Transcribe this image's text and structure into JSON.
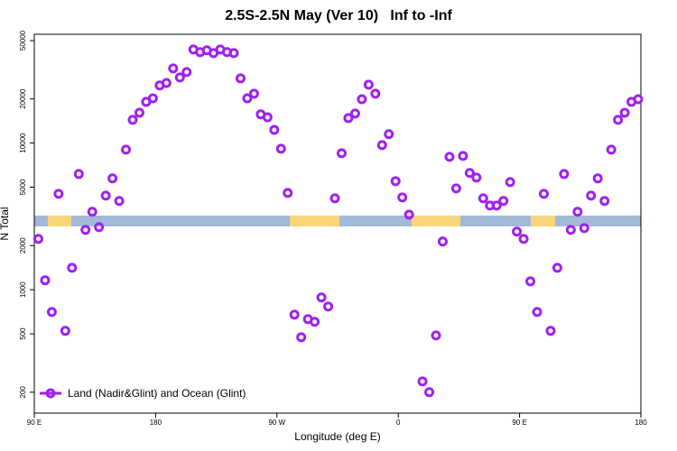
{
  "chart_data": {
    "type": "scatter",
    "title": "2.5S-2.5N May (Ver 10)   Inf to -Inf",
    "x_label": "Longitude (deg E)",
    "y_label": "N Total",
    "y_log": true,
    "legend_position": "bottom-left",
    "xlim": [
      90,
      540
    ],
    "xticks": [
      {
        "value": 90,
        "label": "90 E"
      },
      180,
      {
        "value": 270,
        "label": "90 W"
      },
      {
        "value": 360,
        "label": "0"
      },
      {
        "value": 450,
        "label": "90 E"
      },
      {
        "value": 540,
        "label": "180"
      }
    ],
    "ylim": [
      144,
      55200
    ],
    "yticks": [
      200,
      500,
      1000,
      2000,
      5000,
      10000,
      20000,
      50000
    ],
    "series": [
      {
        "name": "Land (Nadir&Glint) and Ocean (Glint)",
        "color": "#a020f0",
        "x": [
          93,
          98,
          103,
          108,
          113,
          118,
          123,
          128,
          133,
          138,
          143,
          148,
          153,
          158,
          163,
          168,
          173,
          178,
          183,
          188,
          193,
          198,
          203,
          208,
          213,
          218,
          223,
          228,
          233,
          238,
          243,
          248,
          253,
          258,
          263,
          268,
          273,
          278,
          283,
          288,
          293,
          298,
          303,
          308,
          313,
          318,
          323,
          328,
          333,
          338,
          343,
          348,
          353,
          358,
          363,
          368,
          378,
          383,
          388,
          393,
          398,
          403,
          408,
          413,
          418,
          423,
          428,
          433,
          438,
          443,
          448,
          453,
          458,
          463,
          468,
          473,
          478,
          483,
          488,
          493,
          498,
          503,
          508,
          513,
          518,
          523,
          528,
          533,
          538
        ],
        "values": [
          2220,
          1160,
          705,
          4510,
          524,
          1410,
          6150,
          2560,
          3400,
          2670,
          4380,
          5740,
          4030,
          9020,
          14400,
          16100,
          19100,
          20200,
          24700,
          25700,
          32300,
          28000,
          30500,
          43500,
          41700,
          42900,
          41100,
          43500,
          41700,
          41100,
          27600,
          20200,
          21700,
          15700,
          15000,
          12300,
          9150,
          4570,
          676,
          474,
          630,
          604,
          885,
          768,
          4200,
          8530,
          14800,
          15900,
          19900,
          25000,
          21700,
          9680,
          11500,
          5500,
          4260,
          3250,
          237,
          200,
          488,
          2130,
          8060,
          4910,
          8170,
          6250,
          5820,
          4200,
          3750,
          3750,
          4030,
          5420,
          2490,
          2220,
          1140,
          705,
          4510,
          524,
          1410,
          6150,
          2560,
          3400,
          2630,
          4380,
          5740,
          4030,
          9020,
          14400,
          16100,
          19100,
          19900
        ]
      }
    ]
  }
}
